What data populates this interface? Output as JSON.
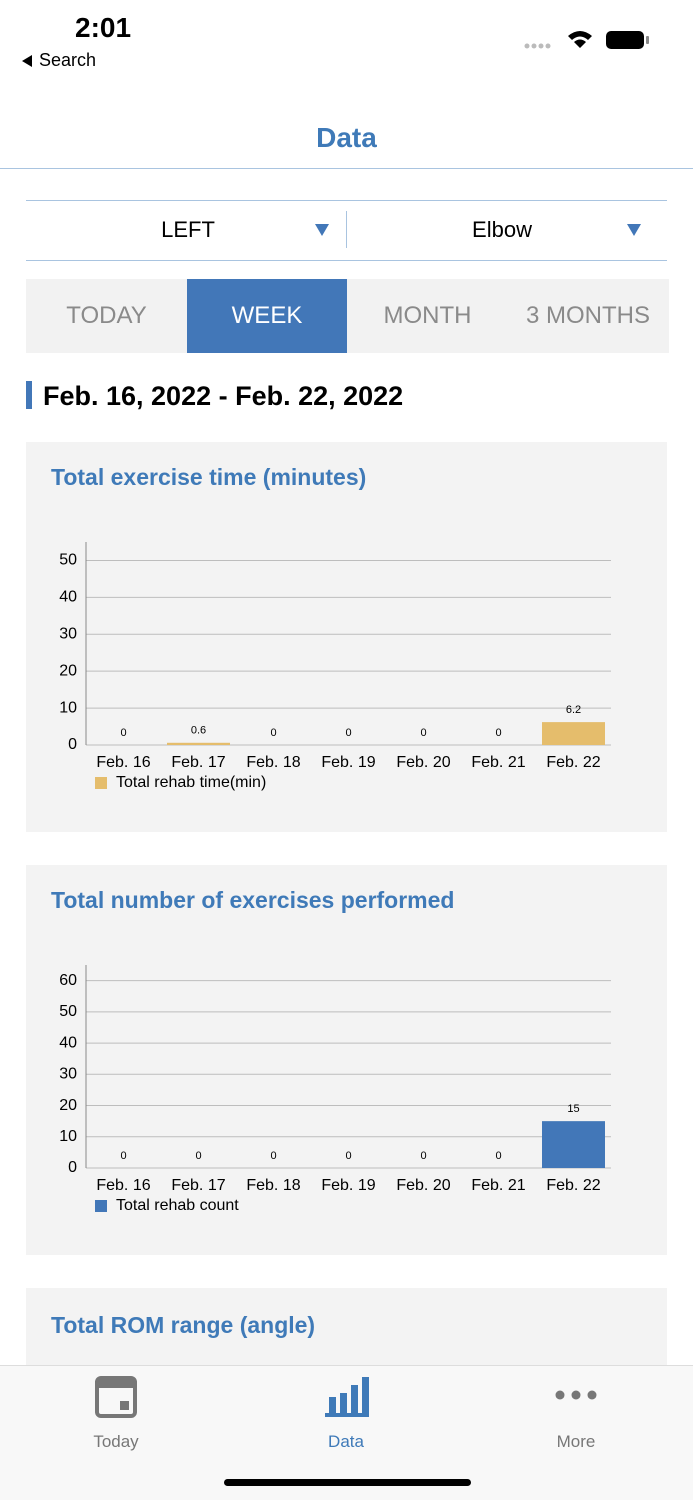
{
  "status_bar": {
    "time": "2:01",
    "back": "Search"
  },
  "header": {
    "title": "Data"
  },
  "selectors": [
    "LEFT",
    "Elbow"
  ],
  "tabs": {
    "items": [
      "TODAY",
      "WEEK",
      "MONTH",
      "3 MONTHS"
    ],
    "active": 1
  },
  "date_range": "Feb. 16, 2022 - Feb. 22, 2022",
  "chart_data": [
    {
      "type": "bar",
      "title": "Total exercise time (minutes)",
      "categories": [
        "Feb. 16",
        "Feb. 17",
        "Feb. 18",
        "Feb. 19",
        "Feb. 20",
        "Feb. 21",
        "Feb. 22"
      ],
      "series": [
        {
          "name": "Total rehab time(min)",
          "color": "#e5bd6c",
          "values": [
            0,
            0.6,
            0,
            0,
            0,
            0,
            6.2
          ]
        }
      ],
      "ylim": [
        0,
        55
      ],
      "yticks": [
        0,
        10,
        20,
        30,
        40,
        50
      ],
      "grid": true
    },
    {
      "type": "bar",
      "title": "Total number of exercises performed",
      "categories": [
        "Feb. 16",
        "Feb. 17",
        "Feb. 18",
        "Feb. 19",
        "Feb. 20",
        "Feb. 21",
        "Feb. 22"
      ],
      "series": [
        {
          "name": "Total rehab count",
          "color": "#4277b8",
          "values": [
            0,
            0,
            0,
            0,
            0,
            0,
            15
          ]
        }
      ],
      "ylim": [
        0,
        65
      ],
      "yticks": [
        0,
        10,
        20,
        30,
        40,
        50,
        60
      ],
      "grid": true
    }
  ],
  "next_section_title": "Total ROM range (angle)",
  "tab_bar": {
    "items": [
      "Today",
      "Data",
      "More"
    ],
    "active": 1
  }
}
